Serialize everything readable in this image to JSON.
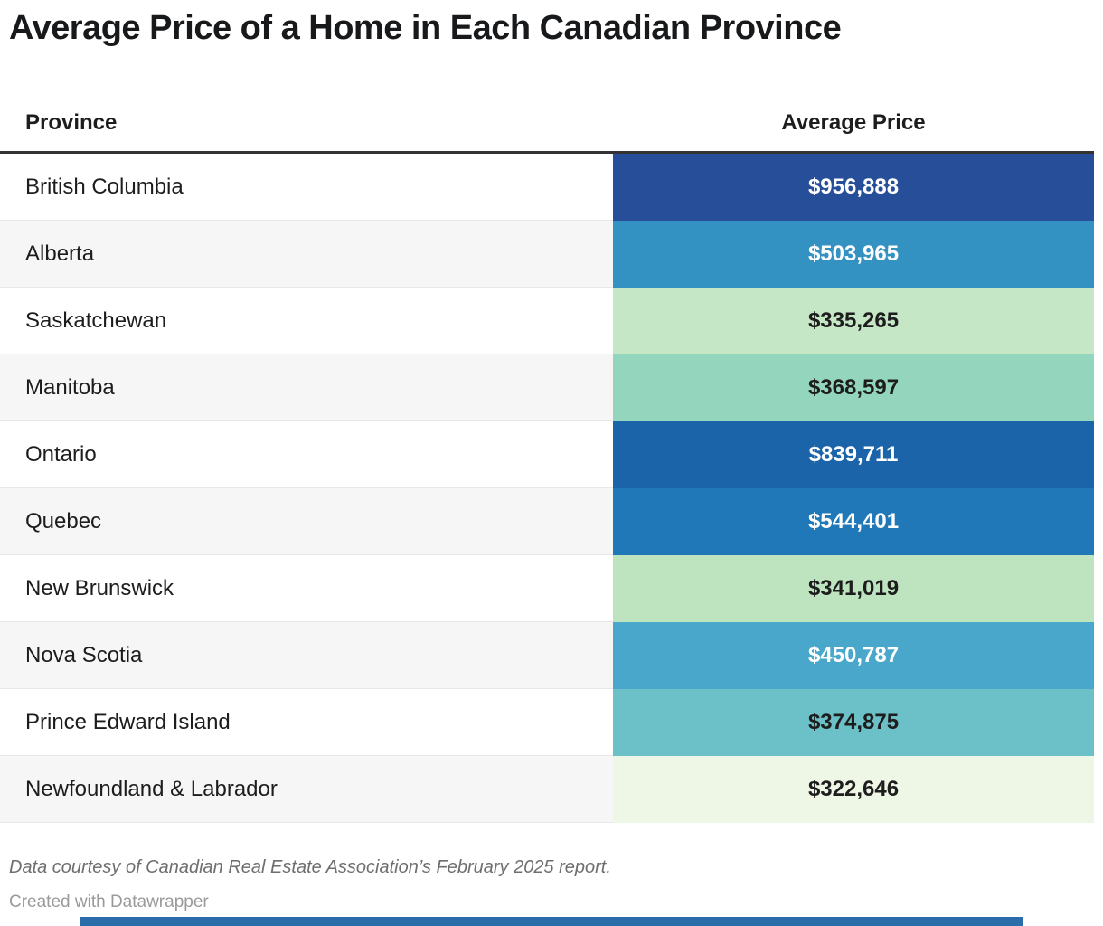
{
  "title": "Average Price of a Home in Each Canadian Province",
  "table": {
    "columns": [
      "Province",
      "Average Price"
    ],
    "rows": [
      {
        "province": "British Columbia",
        "price": "$956,888",
        "cell_bg": "#274f99",
        "cell_fg": "#ffffff"
      },
      {
        "province": "Alberta",
        "price": "$503,965",
        "cell_bg": "#3392c2",
        "cell_fg": "#ffffff"
      },
      {
        "province": "Saskatchewan",
        "price": "$335,265",
        "cell_bg": "#c5e7c6",
        "cell_fg": "#1d1d1d"
      },
      {
        "province": "Manitoba",
        "price": "$368,597",
        "cell_bg": "#93d5bd",
        "cell_fg": "#1d1d1d"
      },
      {
        "province": "Ontario",
        "price": "$839,711",
        "cell_bg": "#1b64a9",
        "cell_fg": "#ffffff"
      },
      {
        "province": "Quebec",
        "price": "$544,401",
        "cell_bg": "#2078b8",
        "cell_fg": "#ffffff"
      },
      {
        "province": "New Brunswick",
        "price": "$341,019",
        "cell_bg": "#bde4be",
        "cell_fg": "#1d1d1d"
      },
      {
        "province": "Nova Scotia",
        "price": "$450,787",
        "cell_bg": "#49a7cb",
        "cell_fg": "#ffffff"
      },
      {
        "province": "Prince Edward Island",
        "price": "$374,875",
        "cell_bg": "#6cc0c7",
        "cell_fg": "#1d1d1d"
      },
      {
        "province": "Newfoundland & Labrador",
        "price": "$322,646",
        "cell_bg": "#eef6e6",
        "cell_fg": "#1d1d1d"
      }
    ]
  },
  "footer": {
    "source": "Data courtesy of Canadian Real Estate Association’s February 2025 report.",
    "credit": "Created with Datawrapper"
  },
  "colors": {
    "header_rule": "#333333",
    "row_stripe": "#f6f6f6",
    "row_separator": "#e8e8e8"
  },
  "bottom_bar": {
    "color": "#2b6cab"
  },
  "chart_data": {
    "type": "table",
    "title": "Average Price of a Home in Each Canadian Province",
    "columns": [
      "Province",
      "Average Price"
    ],
    "categories": [
      "British Columbia",
      "Alberta",
      "Saskatchewan",
      "Manitoba",
      "Ontario",
      "Quebec",
      "New Brunswick",
      "Nova Scotia",
      "Prince Edward Island",
      "Newfoundland & Labrador"
    ],
    "values": [
      956888,
      503965,
      335265,
      368597,
      839711,
      544401,
      341019,
      450787,
      374875,
      322646
    ],
    "value_format": "$#,###",
    "heatmap": true,
    "heatmap_note": "cell background encodes price: light green (low) to dark blue (high)",
    "legend_position": "none",
    "grid": false,
    "source_note": "Data courtesy of Canadian Real Estate Association’s February 2025 report.",
    "credit": "Created with Datawrapper"
  }
}
